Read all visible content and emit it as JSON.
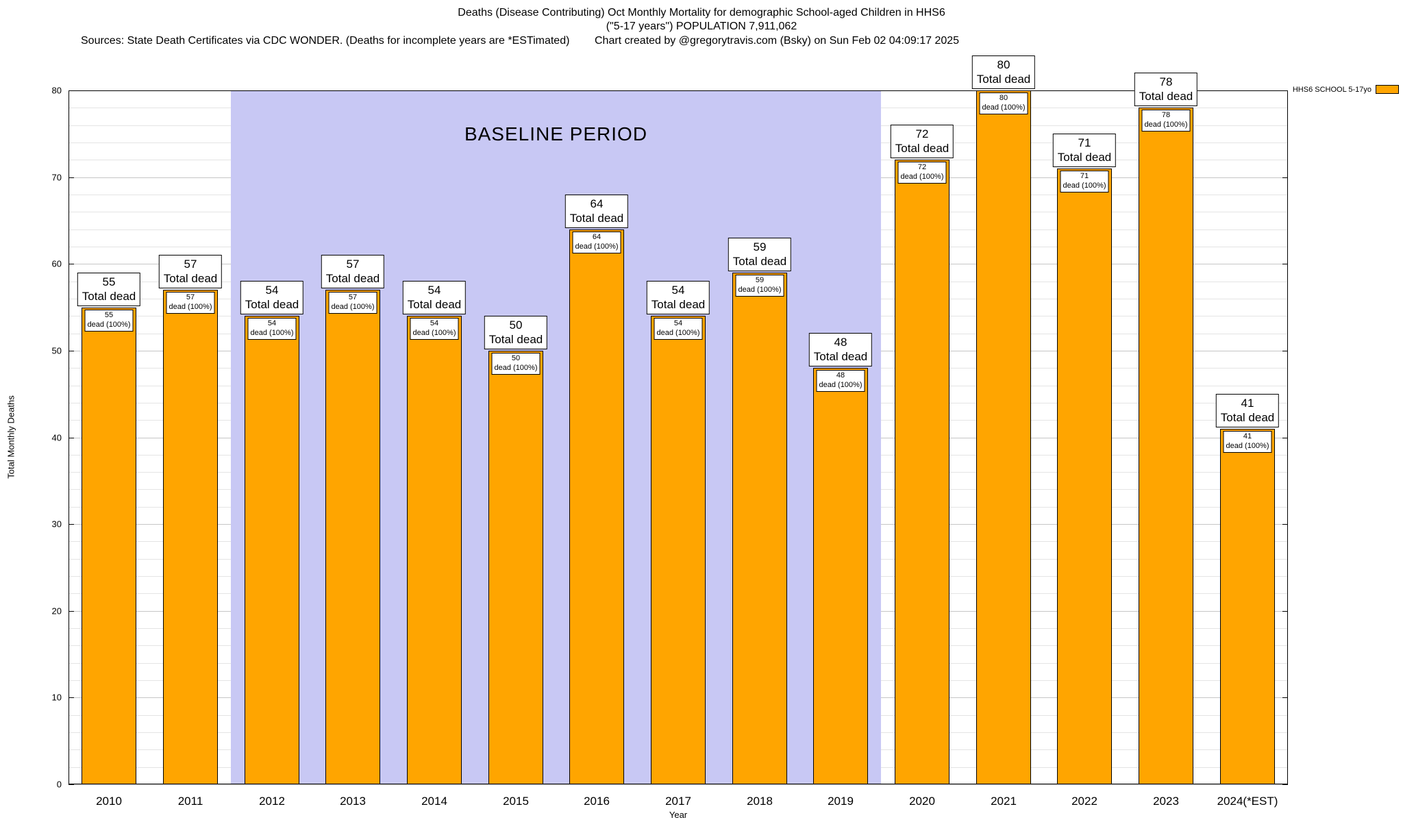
{
  "titles": {
    "line1": "Deaths (Disease Contributing) Oct Monthly Mortality for demographic School-aged Children in HHS6",
    "line2": "(\"5-17 years\") POPULATION 7,911,062",
    "sources": "Sources: State Death Certificates via CDC WONDER. (Deaths for incomplete years are *ESTimated)",
    "credit": "Chart created by @gregorytravis.com (Bsky) on Sun Feb 02 04:09:17 2025"
  },
  "legend": {
    "label": "HHS6 SCHOOL 5-17yo",
    "swatch_color": "#FFA500"
  },
  "chart_data": {
    "type": "bar",
    "title": "Deaths (Disease Contributing) Oct Monthly Mortality for demographic School-aged Children in HHS6 (\"5-17 years\") POPULATION 7,911,062",
    "xlabel": "Year",
    "ylabel": "Total Monthly Deaths",
    "ylim": [
      0,
      80
    ],
    "ytick_interval": 10,
    "minor_grid_interval": 2,
    "grid": true,
    "legend_position": "top-right",
    "categories": [
      "2010",
      "2011",
      "2012",
      "2013",
      "2014",
      "2015",
      "2016",
      "2017",
      "2018",
      "2019",
      "2020",
      "2021",
      "2022",
      "2023",
      "2024(*EST)"
    ],
    "series": [
      {
        "name": "HHS6 SCHOOL 5-17yo",
        "values": [
          55,
          57,
          54,
          57,
          54,
          50,
          64,
          54,
          59,
          48,
          72,
          80,
          71,
          78,
          41
        ]
      }
    ],
    "bar_color": "#FFA500",
    "bar_border_color": "#000000",
    "bar_label_suffix": "Total dead",
    "bar_sublabel_suffix": "dead (100%)",
    "baseline_region": {
      "label": "BASELINE PERIOD",
      "start_category": "2012",
      "end_category": "2019",
      "color": "#c8c8f4"
    }
  }
}
